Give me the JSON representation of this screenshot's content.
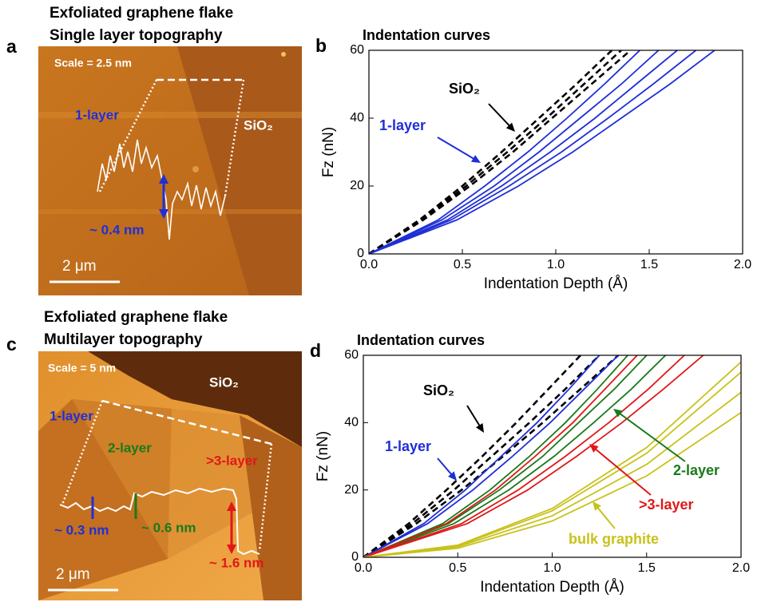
{
  "panels": [
    {
      "letter": "a",
      "title_lines": [
        "Exfoliated graphene flake",
        "Single layer topography"
      ],
      "scale": "Scale = 2.5 nm",
      "labels": [
        "1-layer",
        "SiO₂",
        "~ 0.4 nm"
      ],
      "scale_bar": "2 μm"
    },
    {
      "letter": "c",
      "title_lines": [
        "Exfoliated graphene flake",
        "Multilayer topography"
      ],
      "scale": "Scale = 5 nm",
      "labels": [
        "SiO₂",
        "1-layer",
        "2-layer",
        ">3-layer",
        "~ 0.3 nm",
        "~ 0.6 nm",
        "~ 1.6 nm"
      ],
      "scale_bar": "2 μm"
    }
  ],
  "chart_data": [
    {
      "type": "line",
      "letter": "b",
      "title": "Indentation curves",
      "x_label": "Indentation Depth (Å)",
      "y_label": "Fz (nN)",
      "xlim": [
        0,
        2
      ],
      "ylim": [
        0,
        60
      ],
      "xticks": [
        {
          "value": 0,
          "label": "0.0"
        },
        {
          "value": 0.5,
          "label": "0.5"
        },
        {
          "value": 1,
          "label": "1.0"
        },
        {
          "value": 1.5,
          "label": "1.5"
        },
        {
          "value": 2,
          "label": "2.0"
        }
      ],
      "yticks": [
        0,
        20,
        40,
        60
      ],
      "annotations": [
        {
          "text": "SiO₂",
          "color": "#000000"
        },
        {
          "text": "1-layer",
          "color": "#1f2fd6"
        }
      ],
      "series": [
        {
          "color": "#000000",
          "dashed": true,
          "x": [
            0,
            0.27,
            0.5,
            0.71,
            0.91,
            1.11,
            1.3
          ],
          "values": [
            0,
            10,
            20,
            30,
            40,
            50,
            60
          ]
        },
        {
          "color": "#000000",
          "dashed": true,
          "x": [
            0,
            0.28,
            0.52,
            0.74,
            0.95,
            1.15,
            1.35
          ],
          "values": [
            0,
            10,
            20,
            30,
            40,
            50,
            60
          ]
        },
        {
          "color": "#000000",
          "dashed": true,
          "x": [
            0,
            0.29,
            0.54,
            0.77,
            0.98,
            1.19,
            1.4
          ],
          "values": [
            0,
            10,
            20,
            30,
            40,
            50,
            60
          ]
        },
        {
          "color": "#1f2fd6",
          "dashed": false,
          "x": [
            0,
            0.37,
            0.62,
            0.85,
            1.06,
            1.26,
            1.45
          ],
          "values": [
            0,
            10,
            20,
            30,
            40,
            50,
            60
          ]
        },
        {
          "color": "#1f2fd6",
          "dashed": false,
          "x": [
            0,
            0.39,
            0.67,
            0.91,
            1.13,
            1.35,
            1.55
          ],
          "values": [
            0,
            10,
            20,
            30,
            40,
            50,
            60
          ]
        },
        {
          "color": "#1f2fd6",
          "dashed": false,
          "x": [
            0,
            0.42,
            0.71,
            0.97,
            1.21,
            1.43,
            1.65
          ],
          "values": [
            0,
            10,
            20,
            30,
            40,
            50,
            60
          ]
        },
        {
          "color": "#1f2fd6",
          "dashed": false,
          "x": [
            0,
            0.44,
            0.75,
            1.03,
            1.28,
            1.52,
            1.75
          ],
          "values": [
            0,
            10,
            20,
            30,
            40,
            50,
            60
          ]
        },
        {
          "color": "#1f2fd6",
          "dashed": false,
          "x": [
            0,
            0.47,
            0.8,
            1.09,
            1.35,
            1.61,
            1.85
          ],
          "values": [
            0,
            10,
            20,
            30,
            40,
            50,
            60
          ]
        }
      ]
    },
    {
      "type": "line",
      "letter": "d",
      "title": "Indentation curves",
      "x_label": "Indentation Depth (Å)",
      "y_label": "Fz (nN)",
      "xlim": [
        0,
        2
      ],
      "ylim": [
        0,
        60
      ],
      "xticks": [
        {
          "value": 0,
          "label": "0.0"
        },
        {
          "value": 0.5,
          "label": "0.5"
        },
        {
          "value": 1,
          "label": "1.0"
        },
        {
          "value": 1.5,
          "label": "1.5"
        },
        {
          "value": 2,
          "label": "2.0"
        }
      ],
      "yticks": [
        0,
        20,
        40,
        60
      ],
      "annotations": [
        {
          "text": "SiO₂",
          "color": "#000000"
        },
        {
          "text": "1-layer",
          "color": "#1f2fd6"
        },
        {
          "text": "2-layer",
          "color": "#1a7a1a"
        },
        {
          "text": ">3-layer",
          "color": "#e01818"
        },
        {
          "text": "bulk graphite",
          "color": "#c8c21a"
        }
      ],
      "series": [
        {
          "color": "#000000",
          "dashed": true,
          "x": [
            0,
            0.24,
            0.44,
            0.63,
            0.81,
            0.98,
            1.15
          ],
          "values": [
            0,
            10,
            20,
            30,
            40,
            50,
            60
          ]
        },
        {
          "color": "#000000",
          "dashed": true,
          "x": [
            0,
            0.26,
            0.48,
            0.68,
            0.88,
            1.07,
            1.25
          ],
          "values": [
            0,
            10,
            20,
            30,
            40,
            50,
            60
          ]
        },
        {
          "color": "#000000",
          "dashed": true,
          "x": [
            0,
            0.28,
            0.52,
            0.74,
            0.95,
            1.15,
            1.35
          ],
          "values": [
            0,
            10,
            20,
            30,
            40,
            50,
            60
          ]
        },
        {
          "color": "#1f2fd6",
          "dashed": false,
          "x": [
            0,
            0.32,
            0.54,
            0.73,
            0.92,
            1.09,
            1.25
          ],
          "values": [
            0,
            10,
            20,
            30,
            40,
            50,
            60
          ]
        },
        {
          "color": "#1f2fd6",
          "dashed": false,
          "x": [
            0,
            0.34,
            0.58,
            0.79,
            0.99,
            1.17,
            1.35
          ],
          "values": [
            0,
            10,
            20,
            30,
            40,
            50,
            60
          ]
        },
        {
          "color": "#1a7a1a",
          "dashed": false,
          "x": [
            0,
            0.42,
            0.67,
            0.88,
            1.07,
            1.24,
            1.4
          ],
          "values": [
            0,
            10,
            20,
            30,
            40,
            50,
            60
          ]
        },
        {
          "color": "#1a7a1a",
          "dashed": false,
          "x": [
            0,
            0.45,
            0.72,
            0.95,
            1.14,
            1.33,
            1.5
          ],
          "values": [
            0,
            10,
            20,
            30,
            40,
            50,
            60
          ]
        },
        {
          "color": "#1a7a1a",
          "dashed": false,
          "x": [
            0,
            0.48,
            0.77,
            1.01,
            1.22,
            1.42,
            1.6
          ],
          "values": [
            0,
            10,
            20,
            30,
            40,
            50,
            60
          ]
        },
        {
          "color": "#e01818",
          "dashed": false,
          "x": [
            0,
            0.44,
            0.7,
            0.91,
            1.11,
            1.28,
            1.45
          ],
          "values": [
            0,
            10,
            20,
            30,
            40,
            50,
            60
          ]
        },
        {
          "color": "#e01818",
          "dashed": false,
          "x": [
            0,
            0.52,
            0.82,
            1.07,
            1.3,
            1.51,
            1.7
          ],
          "values": [
            0,
            10,
            20,
            30,
            40,
            50,
            60
          ]
        },
        {
          "color": "#e01818",
          "dashed": false,
          "x": [
            0,
            0.55,
            0.87,
            1.13,
            1.37,
            1.59,
            1.8
          ],
          "values": [
            0,
            10,
            20,
            30,
            40,
            50,
            60
          ]
        },
        {
          "color": "#c8c21a",
          "dashed": false,
          "x": [
            0,
            0.5,
            1.0,
            1.5,
            2.0
          ],
          "values": [
            0,
            2.7,
            10.8,
            24.2,
            43
          ]
        },
        {
          "color": "#c8c21a",
          "dashed": false,
          "x": [
            0,
            0.5,
            1.0,
            1.5,
            2.0
          ],
          "values": [
            0,
            3.1,
            12.3,
            27.6,
            49
          ]
        },
        {
          "color": "#c8c21a",
          "dashed": false,
          "x": [
            0,
            0.5,
            1.0,
            1.5,
            2.0
          ],
          "values": [
            0,
            3.4,
            13.8,
            30.9,
            55
          ]
        },
        {
          "color": "#c8c21a",
          "dashed": false,
          "x": [
            0,
            0.5,
            1.0,
            1.5,
            2.0
          ],
          "values": [
            0,
            3.6,
            14.5,
            32.6,
            58
          ]
        }
      ]
    }
  ]
}
